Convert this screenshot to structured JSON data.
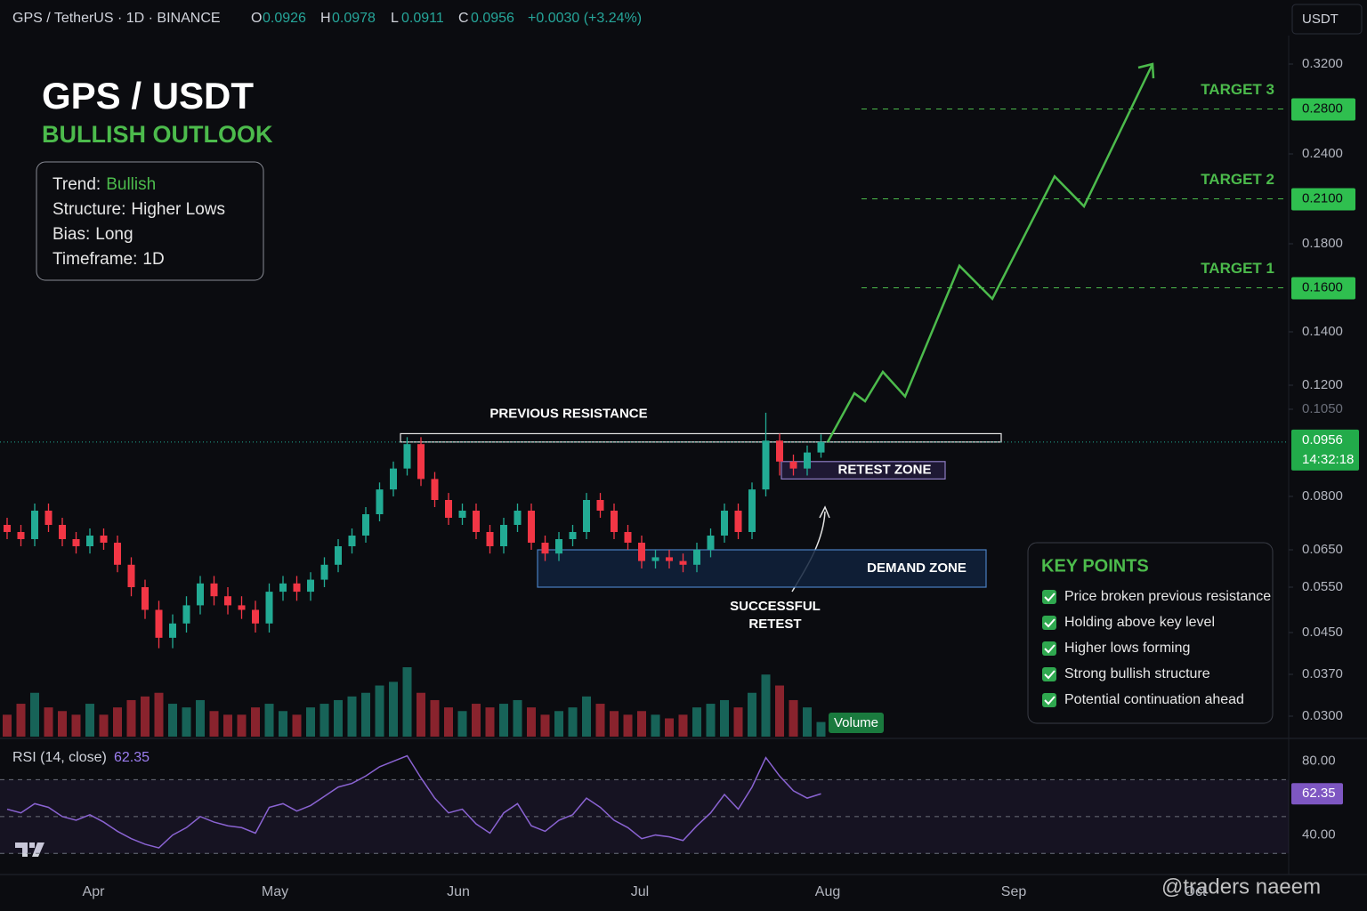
{
  "header": {
    "symbol": "GPS / TetherUS · 1D · BINANCE",
    "ohlc_labels": [
      "O",
      "H",
      "L",
      "C"
    ],
    "change": "+0.0030 (+3.24%)",
    "currency": "USDT"
  },
  "overlay": {
    "title": "GPS / USDT",
    "subtitle": "BULLISH OUTLOOK",
    "info": [
      {
        "label": "Trend:",
        "value": "Bullish"
      },
      {
        "label": "Structure:",
        "value": "Higher Lows"
      },
      {
        "label": "Bias:",
        "value": "Long"
      },
      {
        "label": "Timeframe:",
        "value": "1D"
      }
    ]
  },
  "key_points": {
    "title": "KEY POINTS",
    "items": [
      "Price broken previous resistance",
      "Holding above key level",
      "Higher lows forming",
      "Strong bullish structure",
      "Potential continuation ahead"
    ]
  },
  "watermark": "@traders naeem",
  "chart_data": {
    "type": "candlestick",
    "x_labels": [
      "Apr",
      "May",
      "Jun",
      "Jul",
      "Aug",
      "Sep",
      "Oct"
    ],
    "open": [
      0.072,
      0.07,
      0.068,
      0.076,
      0.072,
      0.068,
      0.066,
      0.069,
      0.067,
      0.061,
      0.055,
      0.05,
      0.044,
      0.047,
      0.051,
      0.056,
      0.053,
      0.051,
      0.05,
      0.047,
      0.054,
      0.056,
      0.054,
      0.057,
      0.061,
      0.066,
      0.069,
      0.075,
      0.082,
      0.088,
      0.095,
      0.085,
      0.079,
      0.074,
      0.076,
      0.07,
      0.066,
      0.072,
      0.076,
      0.067,
      0.064,
      0.068,
      0.07,
      0.079,
      0.076,
      0.07,
      0.067,
      0.062,
      0.063,
      0.062,
      0.061,
      0.065,
      0.069,
      0.076,
      0.07,
      0.082,
      0.096,
      0.09,
      0.088,
      0.0926
    ],
    "high": [
      0.074,
      0.072,
      0.078,
      0.078,
      0.074,
      0.07,
      0.071,
      0.071,
      0.069,
      0.063,
      0.057,
      0.052,
      0.049,
      0.053,
      0.058,
      0.058,
      0.055,
      0.053,
      0.052,
      0.056,
      0.058,
      0.058,
      0.059,
      0.063,
      0.068,
      0.071,
      0.077,
      0.084,
      0.09,
      0.097,
      0.097,
      0.087,
      0.081,
      0.078,
      0.078,
      0.072,
      0.074,
      0.078,
      0.078,
      0.069,
      0.07,
      0.072,
      0.081,
      0.081,
      0.078,
      0.072,
      0.069,
      0.065,
      0.065,
      0.064,
      0.067,
      0.071,
      0.078,
      0.078,
      0.084,
      0.104,
      0.098,
      0.092,
      0.0946,
      0.0978
    ],
    "low": [
      0.068,
      0.066,
      0.066,
      0.07,
      0.066,
      0.064,
      0.064,
      0.065,
      0.059,
      0.053,
      0.048,
      0.042,
      0.042,
      0.045,
      0.049,
      0.051,
      0.049,
      0.048,
      0.045,
      0.045,
      0.052,
      0.052,
      0.052,
      0.055,
      0.059,
      0.064,
      0.067,
      0.073,
      0.08,
      0.086,
      0.083,
      0.077,
      0.072,
      0.072,
      0.068,
      0.064,
      0.064,
      0.07,
      0.065,
      0.062,
      0.062,
      0.066,
      0.068,
      0.074,
      0.068,
      0.065,
      0.06,
      0.06,
      0.06,
      0.059,
      0.059,
      0.063,
      0.067,
      0.068,
      0.068,
      0.08,
      0.086,
      0.086,
      0.086,
      0.0911
    ],
    "close": [
      0.07,
      0.068,
      0.076,
      0.072,
      0.068,
      0.066,
      0.069,
      0.067,
      0.061,
      0.055,
      0.05,
      0.044,
      0.047,
      0.051,
      0.056,
      0.053,
      0.051,
      0.05,
      0.047,
      0.054,
      0.056,
      0.054,
      0.057,
      0.061,
      0.066,
      0.069,
      0.075,
      0.082,
      0.088,
      0.095,
      0.085,
      0.079,
      0.074,
      0.076,
      0.07,
      0.066,
      0.072,
      0.076,
      0.067,
      0.064,
      0.068,
      0.07,
      0.079,
      0.076,
      0.07,
      0.067,
      0.062,
      0.063,
      0.062,
      0.061,
      0.065,
      0.069,
      0.076,
      0.07,
      0.082,
      0.096,
      0.09,
      0.088,
      0.0926,
      0.0956
    ],
    "up_color": "#22ab94",
    "down_color": "#f23645",
    "yticks": [
      {
        "value": 0.32,
        "label": "0.3200"
      },
      {
        "value": 0.24,
        "label": "0.2400"
      },
      {
        "value": 0.18,
        "label": "0.1800"
      },
      {
        "value": 0.14,
        "label": "0.1400"
      },
      {
        "value": 0.12,
        "label": "0.1200"
      },
      {
        "value": 0.105,
        "label": "0.1050"
      },
      {
        "value": 0.08,
        "label": "0.0800"
      },
      {
        "value": 0.065,
        "label": "0.0650"
      },
      {
        "value": 0.055,
        "label": "0.0550"
      },
      {
        "value": 0.045,
        "label": "0.0450"
      },
      {
        "value": 0.037,
        "label": "0.0370"
      },
      {
        "value": 0.03,
        "label": "0.0300"
      }
    ],
    "countdown": "14:32:18",
    "volume": {
      "name": "Volume",
      "values": [
        30,
        45,
        60,
        40,
        35,
        30,
        45,
        30,
        40,
        50,
        55,
        60,
        45,
        40,
        50,
        35,
        30,
        30,
        40,
        45,
        35,
        30,
        40,
        45,
        50,
        55,
        60,
        70,
        75,
        95,
        60,
        50,
        40,
        35,
        45,
        40,
        45,
        50,
        40,
        30,
        35,
        40,
        55,
        45,
        35,
        30,
        35,
        30,
        25,
        30,
        40,
        45,
        50,
        40,
        60,
        85,
        70,
        50,
        40,
        20
      ]
    },
    "projection": {
      "color": "#4cbb4c",
      "values": [
        0.0956,
        0.115,
        0.11,
        0.125,
        0.113,
        0.17,
        0.155,
        0.225,
        0.205,
        0.32
      ]
    },
    "targets": [
      {
        "name": "TARGET 3",
        "value": 0.28,
        "label": "0.2800"
      },
      {
        "name": "TARGET 2",
        "value": 0.21,
        "label": "0.2100"
      },
      {
        "name": "TARGET 1",
        "value": 0.16,
        "label": "0.1600"
      }
    ],
    "zones": [
      {
        "name": "PREVIOUS RESISTANCE",
        "range": [
          0.0956,
          0.098
        ]
      },
      {
        "name": "RETEST ZONE",
        "range": [
          0.085,
          0.09
        ]
      },
      {
        "name": "DEMAND ZONE",
        "range": [
          0.055,
          0.065
        ]
      }
    ],
    "annotation": [
      "SUCCESSFUL",
      "RETEST"
    ],
    "rsi": {
      "name": "RSI (14, close)",
      "color": "#8a63d2",
      "ylim": [
        20,
        90
      ],
      "yticks": [
        {
          "value": 80,
          "label": "80.00"
        },
        {
          "value": 40,
          "label": "40.00"
        }
      ],
      "levels": [
        70,
        50,
        30
      ],
      "values": [
        54,
        52,
        57,
        55,
        50,
        48,
        51,
        47,
        42,
        38,
        35,
        33,
        40,
        44,
        50,
        47,
        45,
        44,
        41,
        55,
        57,
        53,
        56,
        61,
        66,
        68,
        72,
        77,
        80,
        83,
        71,
        60,
        52,
        54,
        46,
        41,
        52,
        57,
        45,
        42,
        48,
        51,
        60,
        55,
        48,
        44,
        38,
        40,
        39,
        37,
        45,
        52,
        62,
        54,
        66,
        82,
        72,
        64,
        60,
        62.35
      ]
    }
  }
}
